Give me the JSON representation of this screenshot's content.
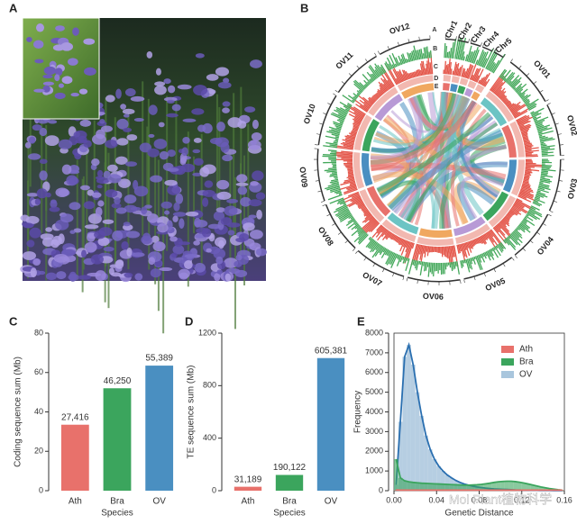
{
  "panels": [
    "A",
    "B",
    "C",
    "D",
    "E"
  ],
  "circos": {
    "chromosomes": [
      "Chr1",
      "Chr2",
      "Chr3",
      "Chr4",
      "Chr5",
      "OV01",
      "OV02",
      "OV03",
      "OV04",
      "OV05",
      "OV06",
      "OV07",
      "OV08",
      "OV09",
      "OV10",
      "OV11",
      "OV12"
    ],
    "tracks": [
      "A",
      "B",
      "C",
      "D",
      "E"
    ]
  },
  "chart_data": [
    {
      "type": "bar",
      "xlabel": "Species",
      "ylabel": "Coding sequence sum (Mb)",
      "categories": [
        "Ath",
        "Bra",
        "OV"
      ],
      "values": [
        33.5,
        52,
        63.5
      ],
      "colors": [
        "#e8716b",
        "#3ba55d",
        "#4a8fc1"
      ],
      "bar_annotations": [
        "27,416",
        "46,250",
        "55,389"
      ],
      "ylim": [
        0,
        80
      ],
      "yticks": [
        0,
        20,
        40,
        60,
        80
      ]
    },
    {
      "type": "bar",
      "xlabel": "Species",
      "ylabel": "TE sequence sum (Mb)",
      "categories": [
        "Ath",
        "Bra",
        "OV"
      ],
      "values": [
        30,
        120,
        1010
      ],
      "colors": [
        "#e8716b",
        "#3ba55d",
        "#4a8fc1"
      ],
      "bar_annotations": [
        "31,189",
        "190,122",
        "605,381"
      ],
      "ylim": [
        0,
        1200
      ],
      "yticks": [
        0,
        400,
        800,
        1200
      ]
    },
    {
      "type": "histogram",
      "xlabel": "Genetic Distance",
      "ylabel": "Frequency",
      "legend": "upper right",
      "bins": [
        0,
        0.004,
        0.008,
        0.012,
        0.016,
        0.02,
        0.024,
        0.028,
        0.032,
        0.036,
        0.04,
        0.044,
        0.048,
        0.052,
        0.056,
        0.06,
        0.064,
        0.068,
        0.072,
        0.076,
        0.08,
        0.084,
        0.088,
        0.092,
        0.096,
        0.1,
        0.104,
        0.108,
        0.112,
        0.116,
        0.12,
        0.124,
        0.128,
        0.132,
        0.136,
        0.14,
        0.144,
        0.148,
        0.152,
        0.156,
        0.16
      ],
      "series": [
        {
          "name": "Ath",
          "color": "#e8716b",
          "values": [
            40,
            30,
            30,
            30,
            30,
            30,
            30,
            30,
            30,
            30,
            30,
            30,
            30,
            30,
            30,
            30,
            30,
            30,
            30,
            30,
            30,
            30,
            30,
            30,
            30,
            30,
            30,
            30,
            30,
            30,
            30,
            30,
            30,
            30,
            30,
            30,
            30,
            30,
            30,
            30
          ]
        },
        {
          "name": "Bra",
          "color": "#3ba55d",
          "values": [
            1600,
            650,
            500,
            450,
            420,
            400,
            380,
            370,
            360,
            350,
            340,
            330,
            320,
            310,
            300,
            290,
            280,
            280,
            290,
            300,
            320,
            350,
            380,
            420,
            450,
            470,
            480,
            480,
            460,
            430,
            390,
            340,
            290,
            240,
            190,
            150,
            110,
            80,
            50,
            30
          ]
        },
        {
          "name": "OV",
          "color": "#a9c6dd",
          "values": [
            300,
            3500,
            6800,
            7400,
            6400,
            5000,
            3800,
            2800,
            2100,
            1600,
            1250,
            1000,
            800,
            650,
            520,
            420,
            340,
            280,
            230,
            190,
            160,
            130,
            110,
            90,
            80,
            70,
            60,
            50,
            40,
            35,
            30,
            25,
            20,
            18,
            15,
            12,
            10,
            8,
            6,
            5
          ]
        }
      ],
      "xlim": [
        0,
        0.16
      ],
      "xticks": [
        {
          "value": 0,
          "label": "0.00"
        },
        0.04,
        0.08,
        0.12,
        0.16
      ],
      "ylim": [
        0,
        8000
      ],
      "yticks": [
        0,
        1000,
        2000,
        3000,
        4000,
        5000,
        6000,
        7000,
        8000
      ]
    }
  ],
  "watermark": "Mol Plant植物科学"
}
